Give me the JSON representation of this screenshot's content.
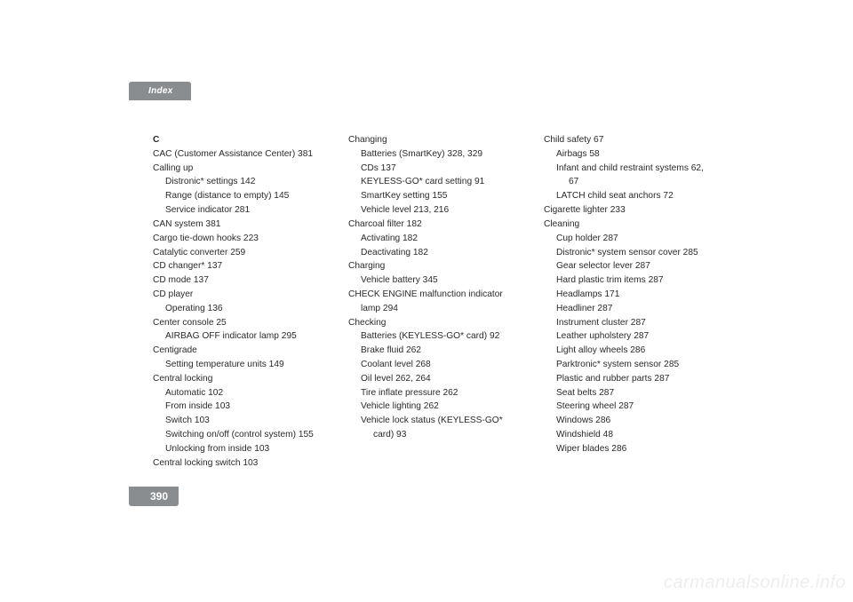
{
  "header": {
    "title": "Index"
  },
  "page_number": "390",
  "watermark": "carmanualsonline.info",
  "col1": {
    "letter": "C",
    "lines": [
      {
        "t": "CAC (Customer Assistance Center) 381",
        "lvl": 0
      },
      {
        "t": "Calling up",
        "lvl": 0
      },
      {
        "t": "Distronic* settings 142",
        "lvl": 1
      },
      {
        "t": "Range (distance to empty) 145",
        "lvl": 1
      },
      {
        "t": "Service indicator 281",
        "lvl": 1
      },
      {
        "t": "CAN system 381",
        "lvl": 0
      },
      {
        "t": "Cargo tie-down hooks 223",
        "lvl": 0
      },
      {
        "t": "Catalytic converter 259",
        "lvl": 0
      },
      {
        "t": "CD changer* 137",
        "lvl": 0
      },
      {
        "t": "CD mode 137",
        "lvl": 0
      },
      {
        "t": "CD player",
        "lvl": 0
      },
      {
        "t": "Operating 136",
        "lvl": 1
      },
      {
        "t": "Center console 25",
        "lvl": 0
      },
      {
        "t": "AIRBAG OFF indicator lamp 295",
        "lvl": 1
      },
      {
        "t": "Centigrade",
        "lvl": 0
      },
      {
        "t": "Setting temperature units 149",
        "lvl": 1
      },
      {
        "t": "Central locking",
        "lvl": 0
      },
      {
        "t": "Automatic 102",
        "lvl": 1
      },
      {
        "t": "From inside 103",
        "lvl": 1
      },
      {
        "t": "Switch 103",
        "lvl": 1
      },
      {
        "t": "Switching on/off (control system) 155",
        "lvl": 1
      },
      {
        "t": "Unlocking from inside 103",
        "lvl": 1
      },
      {
        "t": "Central locking switch 103",
        "lvl": 0
      }
    ]
  },
  "col2": {
    "lines": [
      {
        "t": "Changing",
        "lvl": 0
      },
      {
        "t": "Batteries (SmartKey) 328, 329",
        "lvl": 1
      },
      {
        "t": "CDs 137",
        "lvl": 1
      },
      {
        "t": "KEYLESS-GO* card setting 91",
        "lvl": 1
      },
      {
        "t": "SmartKey setting 155",
        "lvl": 1
      },
      {
        "t": "Vehicle level 213, 216",
        "lvl": 1
      },
      {
        "t": "Charcoal filter 182",
        "lvl": 0
      },
      {
        "t": "Activating 182",
        "lvl": 1
      },
      {
        "t": "Deactivating 182",
        "lvl": 1
      },
      {
        "t": "Charging",
        "lvl": 0
      },
      {
        "t": "Vehicle battery 345",
        "lvl": 1
      },
      {
        "t": "CHECK ENGINE malfunction indicator",
        "lvl": 0
      },
      {
        "t": "lamp 294",
        "lvl": 1
      },
      {
        "t": "Checking",
        "lvl": 0
      },
      {
        "t": "Batteries (KEYLESS-GO* card) 92",
        "lvl": 1
      },
      {
        "t": "Brake fluid 262",
        "lvl": 1
      },
      {
        "t": "Coolant level 268",
        "lvl": 1
      },
      {
        "t": "Oil level 262, 264",
        "lvl": 1
      },
      {
        "t": "Tire inflate pressure 262",
        "lvl": 1
      },
      {
        "t": "Vehicle lighting 262",
        "lvl": 1
      },
      {
        "t": "Vehicle lock status (KEYLESS-GO*",
        "lvl": 1
      },
      {
        "t": "card) 93",
        "lvl": 2
      }
    ]
  },
  "col3": {
    "lines": [
      {
        "t": "Child safety 67",
        "lvl": 0
      },
      {
        "t": "Airbags 58",
        "lvl": 1
      },
      {
        "t": "Infant and child restraint systems 62,",
        "lvl": 1
      },
      {
        "t": "67",
        "lvl": 2
      },
      {
        "t": "LATCH child seat anchors 72",
        "lvl": 1
      },
      {
        "t": "Cigarette lighter 233",
        "lvl": 0
      },
      {
        "t": "Cleaning",
        "lvl": 0
      },
      {
        "t": "Cup holder 287",
        "lvl": 1
      },
      {
        "t": "Distronic* system sensor cover 285",
        "lvl": 1
      },
      {
        "t": "Gear selector lever 287",
        "lvl": 1
      },
      {
        "t": "Hard plastic trim items 287",
        "lvl": 1
      },
      {
        "t": "Headlamps 171",
        "lvl": 1
      },
      {
        "t": "Headliner 287",
        "lvl": 1
      },
      {
        "t": "Instrument cluster 287",
        "lvl": 1
      },
      {
        "t": "Leather upholstery 287",
        "lvl": 1
      },
      {
        "t": "Light alloy wheels 286",
        "lvl": 1
      },
      {
        "t": "Parktronic* system sensor 285",
        "lvl": 1
      },
      {
        "t": "Plastic and rubber parts 287",
        "lvl": 1
      },
      {
        "t": "Seat belts 287",
        "lvl": 1
      },
      {
        "t": "Steering wheel 287",
        "lvl": 1
      },
      {
        "t": "Windows 286",
        "lvl": 1
      },
      {
        "t": "Windshield 48",
        "lvl": 1
      },
      {
        "t": "Wiper blades 286",
        "lvl": 1
      }
    ]
  }
}
